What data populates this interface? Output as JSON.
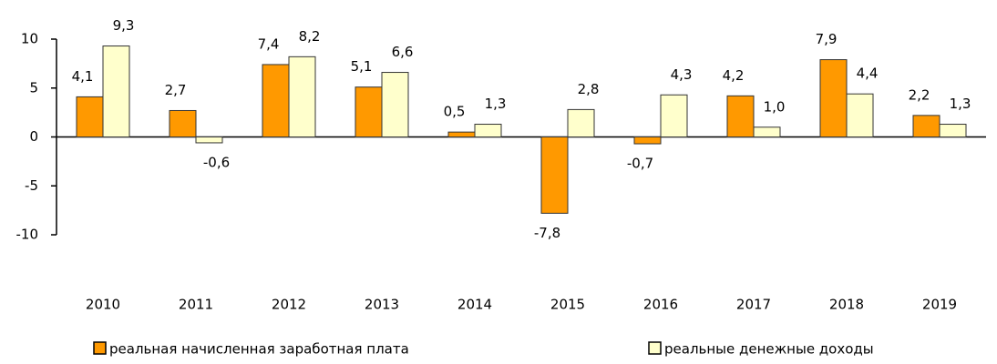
{
  "chart_data": {
    "type": "bar",
    "categories": [
      "2010",
      "2011",
      "2012",
      "2013",
      "2014",
      "2015",
      "2016",
      "2017",
      "2018",
      "2019"
    ],
    "series": [
      {
        "name": "реальная начисленная заработная плата",
        "color": "#ff9900",
        "values": [
          4.1,
          2.7,
          7.4,
          5.1,
          0.5,
          -7.8,
          -0.7,
          4.2,
          7.9,
          2.2
        ],
        "value_labels": [
          "4,1",
          "2,7",
          "7,4",
          "5,1",
          "0,5",
          "-7,8",
          "-0,7",
          "4,2",
          "7,9",
          "2,2"
        ]
      },
      {
        "name": "реальные денежные доходы",
        "color": "#ffffcc",
        "values": [
          9.3,
          -0.6,
          8.2,
          6.6,
          1.3,
          2.8,
          4.3,
          1.0,
          4.4,
          1.3
        ],
        "value_labels": [
          "9,3",
          "-0,6",
          "8,2",
          "6,6",
          "1,3",
          "2,8",
          "4,3",
          "1,0",
          "4,4",
          "1,3"
        ]
      }
    ],
    "ylim": [
      -10,
      10
    ],
    "yticks": [
      10,
      5,
      0,
      -5,
      -10
    ]
  }
}
